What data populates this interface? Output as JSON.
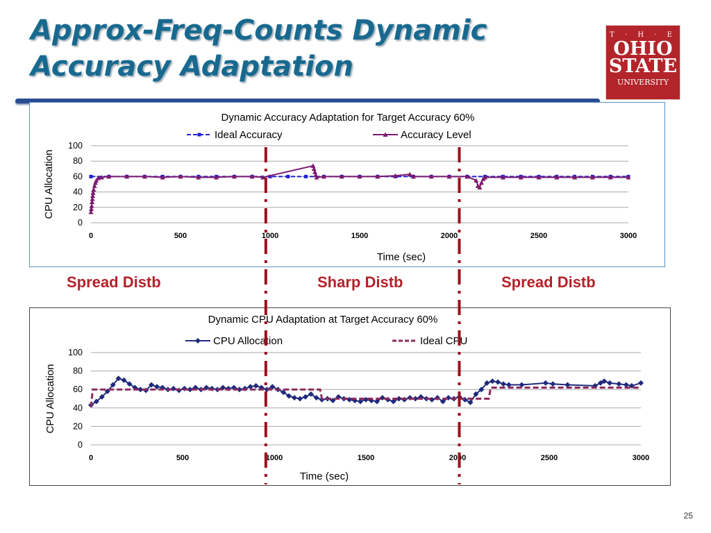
{
  "slide": {
    "title_line1": "Approx-Freq-Counts Dynamic",
    "title_line2": "Accuracy Adaptation",
    "page_number": "25",
    "logo": {
      "the": "T · H · E",
      "line1": "OHIO",
      "line2": "STATE",
      "line3": "UNIVERSITY"
    },
    "regions": [
      "Spread Distb",
      "Sharp Distb",
      "Spread Distb"
    ],
    "colors": {
      "title": "#17698f",
      "region": "#b3222a",
      "divider": "#9b111e",
      "logo": "#b3252b"
    },
    "region_boundaries_sec": [
      980,
      2060
    ]
  },
  "chart_data": [
    {
      "type": "line",
      "title": "Dynamic Accuracy Adaptation for Target Accuracy 60%",
      "xlabel": "Time (sec)",
      "ylabel": "CPU Allocation",
      "xlim": [
        0,
        3000
      ],
      "ylim": [
        0,
        100
      ],
      "xticks": [
        "0",
        "500",
        "1000",
        "1500",
        "2000",
        "2500",
        "3000"
      ],
      "yticks": [
        "0",
        "20",
        "40",
        "60",
        "80",
        "100"
      ],
      "grid": true,
      "legend": "top",
      "series": [
        {
          "name": "Ideal Accuracy",
          "color": "#1f1fd6",
          "style": "dashed-square",
          "x": [
            0,
            100,
            200,
            300,
            400,
            500,
            600,
            700,
            800,
            900,
            1000,
            1100,
            1200,
            1300,
            1400,
            1500,
            1600,
            1700,
            1800,
            1900,
            2000,
            2100,
            2200,
            2300,
            2400,
            2500,
            2600,
            2700,
            2800,
            2900,
            3000
          ],
          "y": [
            60,
            60,
            60,
            60,
            60,
            60,
            60,
            60,
            60,
            60,
            60,
            60,
            60,
            60,
            60,
            60,
            60,
            60,
            60,
            60,
            60,
            60,
            60,
            60,
            60,
            60,
            60,
            60,
            60,
            60,
            60
          ]
        },
        {
          "name": "Accuracy Level",
          "color": "#7b1a6e",
          "style": "solid-triangle",
          "x": [
            0,
            2,
            4,
            6,
            8,
            10,
            12,
            15,
            20,
            25,
            30,
            40,
            60,
            100,
            200,
            300,
            400,
            500,
            600,
            700,
            800,
            900,
            960,
            1240,
            1245,
            1250,
            1255,
            1260,
            1300,
            1400,
            1500,
            1600,
            1700,
            1780,
            1800,
            1900,
            2000,
            2100,
            2150,
            2160,
            2170,
            2180,
            2190,
            2200,
            2300,
            2400,
            2500,
            2600,
            2700,
            2800,
            2900,
            3000
          ],
          "y": [
            14,
            18,
            22,
            27,
            31,
            35,
            39,
            43,
            48,
            52,
            55,
            58,
            59,
            60,
            60,
            60,
            59,
            60,
            59,
            59,
            60,
            60,
            59,
            74,
            70,
            66,
            62,
            59,
            60,
            60,
            60,
            60,
            61,
            63,
            60,
            60,
            60,
            60,
            55,
            48,
            46,
            52,
            57,
            59,
            59,
            59,
            59,
            59,
            59,
            59,
            59,
            59
          ]
        }
      ]
    },
    {
      "type": "line",
      "title": "Dynamic CPU Adaptation at Target Accuracy 60%",
      "xlabel": "Time (sec)",
      "ylabel": "CPU Allocation",
      "xlim": [
        0,
        3000
      ],
      "ylim": [
        0,
        100
      ],
      "xticks": [
        "0",
        "500",
        "1000",
        "1500",
        "2000",
        "2500",
        "3000"
      ],
      "yticks": [
        "0",
        "20",
        "40",
        "60",
        "80",
        "100"
      ],
      "grid": true,
      "legend": "top",
      "series": [
        {
          "name": "CPU Allocation",
          "color": "#1f2a7a",
          "style": "solid-diamond",
          "x": [
            0,
            30,
            60,
            90,
            120,
            150,
            180,
            210,
            240,
            270,
            300,
            330,
            360,
            390,
            420,
            450,
            480,
            510,
            540,
            570,
            600,
            630,
            660,
            690,
            720,
            750,
            780,
            810,
            840,
            870,
            900,
            930,
            960,
            990,
            1020,
            1050,
            1080,
            1110,
            1140,
            1170,
            1200,
            1230,
            1260,
            1290,
            1320,
            1350,
            1380,
            1410,
            1440,
            1470,
            1500,
            1530,
            1560,
            1590,
            1620,
            1650,
            1680,
            1710,
            1740,
            1770,
            1800,
            1830,
            1860,
            1890,
            1920,
            1950,
            1980,
            2010,
            2040,
            2070,
            2100,
            2130,
            2160,
            2190,
            2220,
            2250,
            2280,
            2350,
            2480,
            2520,
            2600,
            2750,
            2780,
            2800,
            2830,
            2880,
            2920,
            2950,
            3000
          ],
          "y": [
            43,
            47,
            52,
            58,
            65,
            72,
            70,
            66,
            62,
            60,
            59,
            65,
            63,
            62,
            60,
            61,
            59,
            61,
            60,
            62,
            60,
            62,
            61,
            60,
            62,
            61,
            62,
            60,
            61,
            63,
            64,
            62,
            60,
            63,
            60,
            57,
            53,
            51,
            50,
            52,
            55,
            51,
            49,
            50,
            48,
            52,
            50,
            49,
            48,
            47,
            49,
            48,
            47,
            51,
            49,
            47,
            50,
            49,
            51,
            50,
            52,
            50,
            49,
            51,
            47,
            51,
            50,
            52,
            49,
            46,
            55,
            60,
            67,
            69,
            68,
            66,
            65,
            65,
            67,
            66,
            65,
            64,
            67,
            69,
            67,
            66,
            65,
            64,
            67
          ]
        },
        {
          "name": "Ideal CPU",
          "color": "#8b2a5e",
          "style": "dashed",
          "x": [
            0,
            10,
            40,
            960,
            1000,
            1250,
            1260,
            2170,
            2175,
            2180,
            3000
          ],
          "y": [
            41,
            60,
            60,
            60,
            60,
            60,
            50,
            50,
            55,
            62,
            62
          ]
        }
      ]
    }
  ]
}
